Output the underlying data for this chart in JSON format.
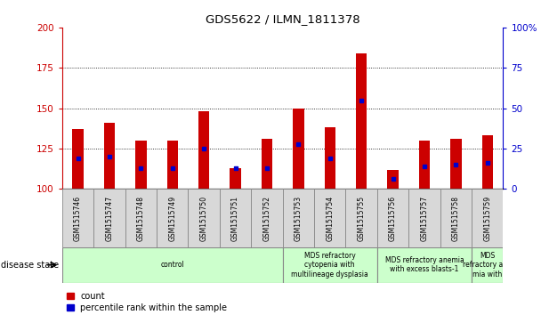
{
  "title": "GDS5622 / ILMN_1811378",
  "samples": [
    "GSM1515746",
    "GSM1515747",
    "GSM1515748",
    "GSM1515749",
    "GSM1515750",
    "GSM1515751",
    "GSM1515752",
    "GSM1515753",
    "GSM1515754",
    "GSM1515755",
    "GSM1515756",
    "GSM1515757",
    "GSM1515758",
    "GSM1515759"
  ],
  "counts": [
    137,
    141,
    130,
    130,
    148,
    113,
    131,
    150,
    138,
    184,
    112,
    130,
    131,
    133
  ],
  "percentile_values": [
    119,
    120,
    113,
    113,
    125,
    113,
    113,
    128,
    119,
    155,
    106,
    114,
    115,
    116
  ],
  "ymin": 100,
  "ymax": 200,
  "yticks_left": [
    100,
    125,
    150,
    175,
    200
  ],
  "yticks_right": [
    0,
    25,
    50,
    75,
    100
  ],
  "bar_color": "#cc0000",
  "percentile_color": "#0000cc",
  "disease_groups": [
    {
      "label": "control",
      "start": 0,
      "end": 7
    },
    {
      "label": "MDS refractory\ncytopenia with\nmultilineage dysplasia",
      "start": 7,
      "end": 10
    },
    {
      "label": "MDS refractory anemia\nwith excess blasts-1",
      "start": 10,
      "end": 13
    },
    {
      "label": "MDS\nrefractory ane\nmia with",
      "start": 13,
      "end": 14
    }
  ],
  "disease_group_color": "#ccffcc",
  "xtick_bg_color": "#d8d8d8",
  "plot_bg_color": "#ffffff",
  "right_axis_color": "#0000cc",
  "left_axis_color": "#cc0000",
  "grid_color": "#000000"
}
